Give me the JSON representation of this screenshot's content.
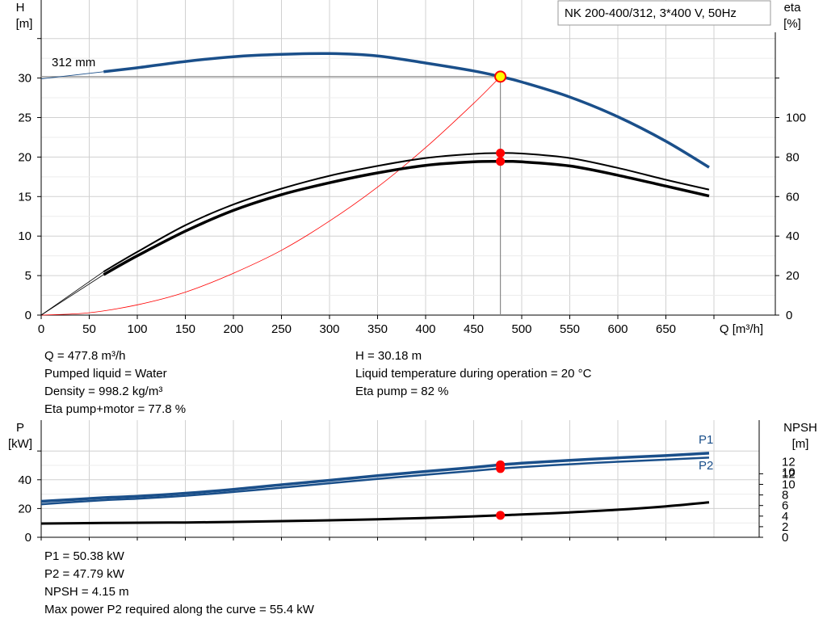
{
  "title_box": "NK 200-400/312, 3*400 V, 50Hz",
  "upper": {
    "left_axis_label": [
      "H",
      "[m]"
    ],
    "right_axis_label": [
      "eta",
      "[%]"
    ],
    "x_axis_label": "Q [m³/h]",
    "impeller_label": "312 mm"
  },
  "lower": {
    "left_axis_label": [
      "P",
      "[kW]"
    ],
    "right_axis_label": [
      "NPSH",
      "[m]"
    ],
    "p1_label": "P1",
    "p2_label": "P2"
  },
  "info_upper_left": [
    "Q = 477.8 m³/h",
    "Pumped liquid = Water",
    "Density = 998.2 kg/m³",
    "Eta pump+motor = 77.8 %"
  ],
  "info_upper_right": [
    "H = 30.18 m",
    "Liquid temperature during operation = 20 °C",
    "Eta pump = 82 %"
  ],
  "info_lower": [
    "P1 = 50.38 kW",
    "P2 = 47.79 kW",
    "NPSH = 4.15 m",
    "Max power P2 required along the curve = 55.4 kW"
  ],
  "colors": {
    "head": "#1a4f8a",
    "eta": "#000000",
    "system": "#ff0000",
    "op_point_fill": "#ffff00",
    "op_point_stroke": "#ff0000",
    "marker": "#ff0000",
    "grid": "#d0d0d0",
    "power": "#1a4f8a",
    "npsh": "#000000"
  },
  "chart_data": [
    {
      "type": "line",
      "title": "NK 200-400/312, 3*400 V, 50Hz",
      "xlabel": "Q [m³/h]",
      "ylabel": "H [m]",
      "y2label": "eta [%]",
      "xlim": [
        0,
        700
      ],
      "ylim": [
        0,
        35
      ],
      "y2lim": [
        0,
        140
      ],
      "x_ticks": [
        0,
        50,
        100,
        150,
        200,
        250,
        300,
        350,
        400,
        450,
        500,
        550,
        600,
        650
      ],
      "y_ticks": [
        0,
        5,
        10,
        15,
        20,
        25,
        30
      ],
      "y2_ticks": [
        0,
        20,
        40,
        60,
        80,
        100
      ],
      "grid": true,
      "operating_point": {
        "Q": 477.8,
        "H": 30.18,
        "eta_pump": 82,
        "eta_total": 77.8
      },
      "series": [
        {
          "name": "312 mm",
          "axis": "left",
          "x": [
            65,
            100,
            150,
            200,
            250,
            300,
            350,
            400,
            450,
            477.8,
            500,
            550,
            600,
            650,
            695
          ],
          "values": [
            30.8,
            31.3,
            32.1,
            32.7,
            33.0,
            33.1,
            32.8,
            31.9,
            30.9,
            30.18,
            29.5,
            27.6,
            25.1,
            22.0,
            18.7
          ]
        },
        {
          "axis": "left",
          "x": [
            0,
            65
          ],
          "values": [
            29.9,
            30.8
          ],
          "dashed": false,
          "thin": true
        },
        {
          "name": "Eta pump",
          "axis": "right",
          "x": [
            65,
            100,
            150,
            200,
            250,
            300,
            350,
            400,
            450,
            477.8,
            500,
            550,
            600,
            650,
            695
          ],
          "values": [
            22.0,
            32.0,
            45.5,
            56.0,
            64.0,
            70.5,
            75.5,
            79.5,
            81.6,
            82.0,
            81.8,
            79.5,
            74.5,
            68.5,
            63.5
          ]
        },
        {
          "name": "Eta pump+motor",
          "axis": "right",
          "x": [
            65,
            100,
            150,
            200,
            250,
            300,
            350,
            400,
            450,
            477.8,
            500,
            550,
            600,
            650,
            695
          ],
          "values": [
            20.5,
            30.0,
            42.5,
            53.0,
            61.0,
            67.0,
            72.0,
            75.8,
            77.6,
            77.8,
            77.6,
            75.5,
            70.8,
            65.3,
            60.3
          ]
        },
        {
          "name": "System curve",
          "axis": "left",
          "x": [
            0,
            50,
            100,
            150,
            200,
            250,
            300,
            350,
            400,
            450,
            477.8
          ],
          "values": [
            0,
            0.3,
            1.3,
            2.9,
            5.3,
            8.2,
            11.9,
            16.2,
            21.2,
            26.8,
            30.18
          ]
        }
      ]
    },
    {
      "type": "line",
      "ylabel": "P [kW]",
      "y2label": "NPSH [m]",
      "xlim": [
        0,
        700
      ],
      "ylim": [
        0,
        60
      ],
      "y2lim": [
        0,
        14
      ],
      "y_ticks": [
        0,
        20,
        40
      ],
      "y2_ticks": [
        0,
        2,
        4,
        6,
        8,
        10,
        12
      ],
      "grid": true,
      "series": [
        {
          "name": "P1",
          "axis": "left",
          "x": [
            0,
            65,
            100,
            150,
            200,
            250,
            300,
            350,
            400,
            450,
            477.8,
            500,
            550,
            600,
            650,
            695
          ],
          "values": [
            25.0,
            27.5,
            28.5,
            30.6,
            33.3,
            36.5,
            39.6,
            42.8,
            45.8,
            48.6,
            50.38,
            51.5,
            53.5,
            55.3,
            56.8,
            58.5
          ]
        },
        {
          "name": "P2",
          "axis": "left",
          "x": [
            0,
            65,
            100,
            150,
            200,
            250,
            300,
            350,
            400,
            450,
            477.8,
            500,
            550,
            600,
            650,
            695
          ],
          "values": [
            23.0,
            25.8,
            26.8,
            28.9,
            31.5,
            34.5,
            37.6,
            40.6,
            43.5,
            46.2,
            47.79,
            48.8,
            50.8,
            52.5,
            54.0,
            55.4
          ]
        },
        {
          "name": "NPSH",
          "axis": "right",
          "x": [
            0,
            65,
            100,
            150,
            200,
            250,
            300,
            350,
            400,
            450,
            477.8,
            500,
            550,
            600,
            650,
            695
          ],
          "values": [
            2.6,
            2.7,
            2.75,
            2.8,
            2.9,
            3.05,
            3.2,
            3.4,
            3.65,
            3.95,
            4.15,
            4.3,
            4.7,
            5.2,
            5.85,
            6.6
          ]
        }
      ]
    }
  ]
}
